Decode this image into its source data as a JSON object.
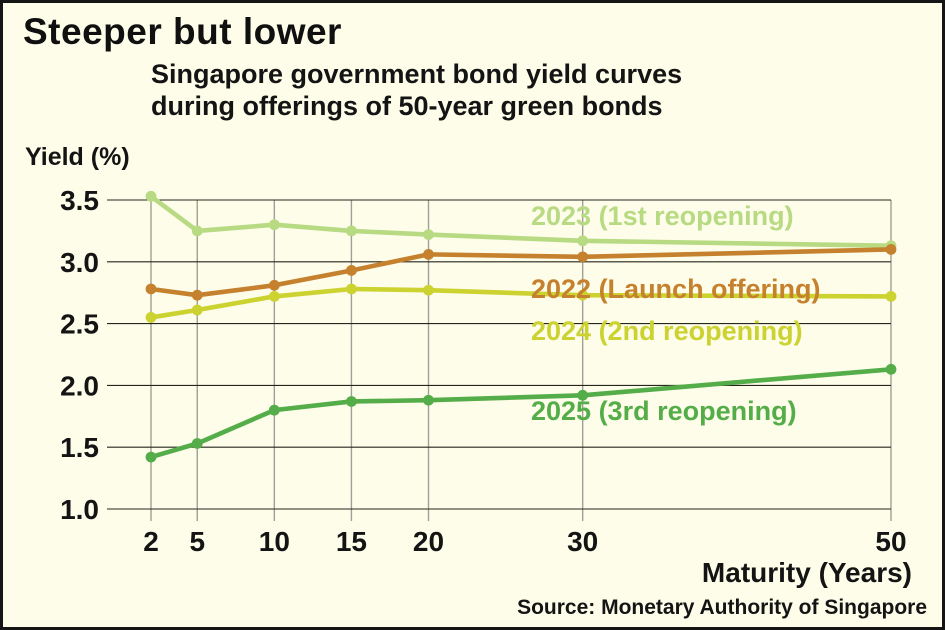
{
  "title": "Steeper but lower",
  "subtitle": {
    "line1": "Singapore government bond yield curves",
    "line2": "during offerings of 50-year green bonds"
  },
  "axis": {
    "y_label": "Yield (%)",
    "x_label": "Maturity (Years)"
  },
  "source": "Source: Monetary Authority of Singapore",
  "colors": {
    "background": "#fdfdea",
    "frame_border": "#151515",
    "h_grid": "#26261e",
    "v_grid": "#a0a096",
    "text": "#141414"
  },
  "chart_data": {
    "type": "line",
    "title": "Singapore government bond yield curves during offerings of 50-year green bonds",
    "xlabel": "Maturity (Years)",
    "ylabel": "Yield (%)",
    "x": [
      2,
      5,
      10,
      15,
      20,
      30,
      50
    ],
    "x_tick_labels": [
      "2",
      "5",
      "10",
      "15",
      "20",
      "30",
      "50"
    ],
    "y_ticks": [
      1.0,
      1.5,
      2.0,
      2.5,
      3.0,
      3.5
    ],
    "xlim": [
      2,
      50
    ],
    "ylim": [
      1.0,
      3.5
    ],
    "grid": true,
    "legend_position": "inline-annotations",
    "series": [
      {
        "name": "2023 (1st reopening)",
        "color": "#b7da83",
        "values": [
          3.53,
          3.25,
          3.3,
          3.25,
          3.22,
          3.17,
          3.13
        ]
      },
      {
        "name": "2022 (Launch offering)",
        "color": "#c5812d",
        "values": [
          2.78,
          2.73,
          2.81,
          2.93,
          3.06,
          3.04,
          3.1
        ]
      },
      {
        "name": "2024 (2nd reopening)",
        "color": "#ccd22f",
        "values": [
          2.55,
          2.61,
          2.72,
          2.78,
          2.77,
          2.73,
          2.72
        ]
      },
      {
        "name": "2025 (3rd reopening)",
        "color": "#54ad48",
        "values": [
          1.42,
          1.53,
          1.8,
          1.87,
          1.88,
          1.92,
          2.13
        ]
      }
    ]
  }
}
